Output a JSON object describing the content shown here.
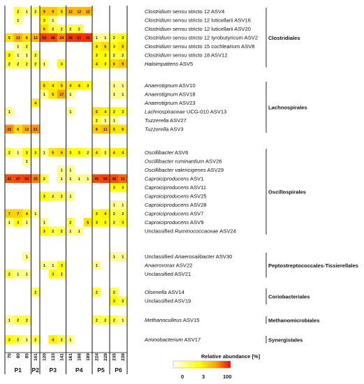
{
  "chart_data": {
    "type": "heatmap",
    "legend_title": "Relative abundance [%]",
    "legend_ticks": [
      "0",
      "3",
      "100"
    ],
    "color_scale": [
      "#ffffff",
      "#ffff00",
      "#ff0000"
    ],
    "groups": [
      {
        "label": "P1",
        "samples": [
          "70",
          "80",
          "85"
        ]
      },
      {
        "label": "P2",
        "samples": [
          "101"
        ]
      },
      {
        "label": "P3",
        "samples": [
          "120",
          "133",
          "141"
        ]
      },
      {
        "label": "P4",
        "samples": [
          "161",
          "168",
          "189"
        ]
      },
      {
        "label": "P5",
        "samples": [
          "224",
          "228"
        ]
      },
      {
        "label": "P6",
        "samples": [
          "235",
          "238"
        ]
      }
    ],
    "orders": [
      {
        "name": "Clostridiales",
        "rows": [
          {
            "taxon_italic": "Clostridium",
            "taxon_rest": " sensu stricto 12 ASV4",
            "values": [
              0,
              2,
              1,
              2,
              9,
              9,
              5,
              12,
              12,
              12,
              0,
              0,
              0,
              0
            ]
          },
          {
            "taxon_italic": "Clostridium",
            "taxon_rest": " sensu stricto 12 luticellarii ASV16",
            "values": [
              0,
              1,
              0,
              0,
              3,
              1,
              0,
              0,
              0,
              0,
              0,
              0,
              0,
              0
            ]
          },
          {
            "taxon_italic": "Clostridium",
            "taxon_rest": " sensu stricto 12 luticellarii ASV20",
            "values": [
              0,
              0,
              0,
              0,
              6,
              2,
              2,
              2,
              2,
              0,
              0,
              0,
              0,
              0
            ]
          },
          {
            "taxon_italic": "Clostridium",
            "taxon_rest": " sensu stricto 12 tyrobutyricum ASV2",
            "values": [
              5,
              13,
              6,
              12,
              50,
              48,
              24,
              58,
              61,
              62,
              1,
              1,
              2,
              3
            ]
          },
          {
            "taxon_italic": "Clostridium",
            "taxon_rest": " sensu stricto 15 cochlearium ASV8",
            "values": [
              0,
              1,
              2,
              0,
              0,
              0,
              0,
              0,
              0,
              0,
              4,
              6,
              3,
              5
            ]
          },
          {
            "taxon_italic": "Clostridium",
            "taxon_rest": " sensu stricto 18 ASV12",
            "values": [
              3,
              1,
              1,
              2,
              0,
              0,
              0,
              0,
              0,
              0,
              3,
              3,
              2,
              2
            ]
          },
          {
            "taxon_italic": "Haloimpatiens",
            "taxon_rest": " ASV5",
            "values": [
              2,
              2,
              2,
              2,
              1,
              0,
              3,
              0,
              0,
              0,
              4,
              3,
              6,
              9
            ]
          }
        ]
      },
      {
        "name": "Lachnospirales",
        "rows": [
          {
            "taxon_italic": "Anaerotignum",
            "taxon_rest": " ASV10",
            "values": [
              0,
              0,
              0,
              0,
              5,
              4,
              5,
              4,
              4,
              3,
              0,
              0,
              1,
              1
            ]
          },
          {
            "taxon_italic": "Anaerotignum",
            "taxon_rest": " ASV18",
            "values": [
              0,
              0,
              0,
              0,
              1,
              5,
              17,
              1,
              0,
              0,
              0,
              0,
              1,
              1
            ]
          },
          {
            "taxon_italic": "Anaerotignum",
            "taxon_rest": " ASV23",
            "values": [
              0,
              0,
              0,
              4,
              0,
              0,
              0,
              0,
              0,
              0,
              0,
              0,
              0,
              0
            ]
          },
          {
            "taxon_italic": "Lachnospiraceae",
            "taxon_rest": " UCG-010 ASV13",
            "values": [
              1,
              0,
              0,
              0,
              0,
              0,
              0,
              1,
              0,
              0,
              5,
              4,
              3,
              3
            ]
          },
          {
            "taxon_italic": "Tuzzerella",
            "taxon_rest": " ASV27",
            "values": [
              0,
              0,
              0,
              0,
              0,
              0,
              0,
              0,
              0,
              0,
              2,
              1,
              1,
              0
            ]
          },
          {
            "taxon_italic": "Tuzzerella",
            "taxon_rest": " ASV3",
            "values": [
              22,
              6,
              13,
              21,
              0,
              0,
              0,
              0,
              0,
              0,
              8,
              11,
              5,
              5
            ]
          }
        ]
      },
      {
        "name": "Oscillospirales",
        "rows": [
          {
            "taxon_italic": "Oscillibacter",
            "taxon_rest": " ASV6",
            "values": [
              2,
              1,
              3,
              3,
              1,
              5,
              6,
              3,
              3,
              2,
              4,
              2,
              4,
              4
            ]
          },
          {
            "taxon_italic": "Oscillibacter ruminantium",
            "taxon_rest": " ASV26",
            "values": [
              0,
              0,
              1,
              0,
              0,
              0,
              0,
              0,
              0,
              0,
              0,
              0,
              0,
              0
            ]
          },
          {
            "taxon_italic": "Oscillibacter valericigenes",
            "taxon_rest": " ASV29",
            "values": [
              0,
              0,
              0,
              0,
              0,
              0,
              1,
              1,
              0,
              0,
              0,
              0,
              0,
              0
            ]
          },
          {
            "taxon_italic": "Caproiciproducens",
            "taxon_rest": " ASV1",
            "values": [
              42,
              47,
              50,
              25,
              2,
              0,
              1,
              1,
              1,
              1,
              45,
              50,
              46,
              33
            ]
          },
          {
            "taxon_italic": "Caproiciproducens",
            "taxon_rest": " ASV11",
            "values": [
              0,
              0,
              0,
              0,
              0,
              0,
              0,
              0,
              0,
              0,
              0,
              0,
              3,
              3
            ]
          },
          {
            "taxon_italic": "Caproiciproducens",
            "taxon_rest": " ASV25",
            "values": [
              0,
              0,
              0,
              0,
              3,
              2,
              2,
              1,
              0,
              0,
              0,
              0,
              0,
              0
            ]
          },
          {
            "taxon_italic": "Caproiciproducens",
            "taxon_rest": " ASV28",
            "values": [
              0,
              0,
              0,
              0,
              0,
              0,
              0,
              0,
              0,
              0,
              0,
              0,
              1,
              1
            ]
          },
          {
            "taxon_italic": "Caproiciproducens",
            "taxon_rest": " ASV7",
            "values": [
              7,
              7,
              4,
              1,
              0,
              0,
              0,
              0,
              0,
              0,
              3,
              4,
              2,
              2
            ]
          },
          {
            "taxon_italic": "Caproiciproducens",
            "taxon_rest": " ASV9",
            "values": [
              1,
              3,
              1,
              0,
              1,
              0,
              0,
              2,
              0,
              5,
              3,
              3,
              2,
              3
            ]
          },
          {
            "taxon_label": "Unclassified ",
            "taxon_italic": "Ruminococcaceae",
            "taxon_rest": " ASV24",
            "values": [
              0,
              0,
              0,
              0,
              3,
              2,
              2,
              1,
              1,
              0,
              0,
              0,
              0,
              0
            ]
          }
        ]
      },
      {
        "name": "Peptostreptococcales-Tissierellales",
        "rows": [
          {
            "taxon_label": "Unclassified ",
            "taxon_italic": "Anaerosalibacter",
            "taxon_rest": " ASV30",
            "values": [
              0,
              0,
              1,
              0,
              0,
              0,
              0,
              0,
              0,
              0,
              0,
              0,
              1,
              1
            ]
          },
          {
            "taxon_italic": "Anaerovorax",
            "taxon_rest": " ASV22",
            "values": [
              0,
              0,
              0,
              0,
              1,
              1,
              3,
              0,
              0,
              0,
              1,
              0,
              0,
              0
            ]
          },
          {
            "taxon_label": "Unclassified",
            "taxon_italic": "",
            "taxon_rest": " ASV21",
            "values": [
              2,
              1,
              1,
              0,
              0,
              3,
              2,
              0,
              0,
              0,
              0,
              0,
              0,
              0
            ]
          }
        ]
      },
      {
        "name": "Coriobacteriales",
        "rows": [
          {
            "taxon_italic": "Olsenella",
            "taxon_rest": " ASV14",
            "values": [
              0,
              0,
              0,
              2,
              0,
              0,
              0,
              0,
              0,
              0,
              2,
              0,
              2,
              0
            ]
          },
          {
            "taxon_label": "Unclassified",
            "taxon_italic": "",
            "taxon_rest": " ASV19",
            "values": [
              0,
              0,
              0,
              0,
              0,
              0,
              0,
              0,
              0,
              0,
              0,
              0,
              3,
              2
            ]
          }
        ]
      },
      {
        "name": "Methanomicrobiales",
        "rows": [
          {
            "taxon_italic": "Methanoculleus",
            "taxon_rest": " ASV15",
            "values": [
              1,
              2,
              2,
              0,
              0,
              0,
              0,
              0,
              0,
              0,
              2,
              2,
              2,
              1
            ]
          }
        ]
      },
      {
        "name": "Synergistales",
        "rows": [
          {
            "taxon_italic": "Aminobacterium",
            "taxon_rest": " ASV17",
            "values": [
              3,
              2,
              1,
              2,
              0,
              4,
              2,
              1,
              0,
              0,
              0,
              0,
              0,
              0
            ]
          }
        ]
      }
    ]
  }
}
